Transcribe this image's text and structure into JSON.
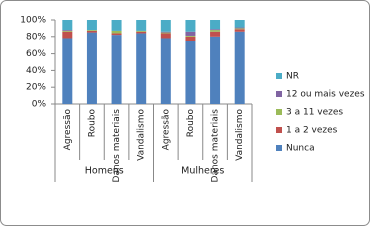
{
  "chart_data": {
    "type": "stacked_bar",
    "categories": [
      "Agressão",
      "Roubo",
      "Danos materiais",
      "Vandalismo",
      "Agressão",
      "Roubo",
      "Danos materiais",
      "Vandalismo"
    ],
    "groups": [
      "Homens",
      "Mulheres"
    ],
    "series": [
      {
        "name": "Nunca",
        "color": "#4f81bd",
        "values": [
          78,
          85,
          82,
          84,
          78,
          75,
          80,
          86
        ]
      },
      {
        "name": "1 a 2 vezes",
        "color": "#c0504d",
        "values": [
          8,
          2,
          2,
          2,
          6,
          5,
          6,
          3
        ]
      },
      {
        "name": "3 a 11 vezes",
        "color": "#9bbb59",
        "values": [
          1,
          1,
          3,
          1,
          1,
          1,
          2,
          1
        ]
      },
      {
        "name": "12 ou mais vezes",
        "color": "#8064a2",
        "values": [
          1,
          0,
          0,
          0,
          1,
          5,
          1,
          1
        ]
      },
      {
        "name": "NR",
        "color": "#4bacc6",
        "values": [
          12,
          12,
          13,
          13,
          14,
          14,
          11,
          9
        ]
      }
    ],
    "ylim": [
      0,
      100
    ],
    "yticks": [
      {
        "value": 0,
        "label": "0%"
      },
      {
        "value": 20,
        "label": "20%"
      },
      {
        "value": 40,
        "label": "40%"
      },
      {
        "value": 60,
        "label": "60%"
      },
      {
        "value": 80,
        "label": "80%"
      },
      {
        "value": 100,
        "label": "100%"
      }
    ]
  }
}
